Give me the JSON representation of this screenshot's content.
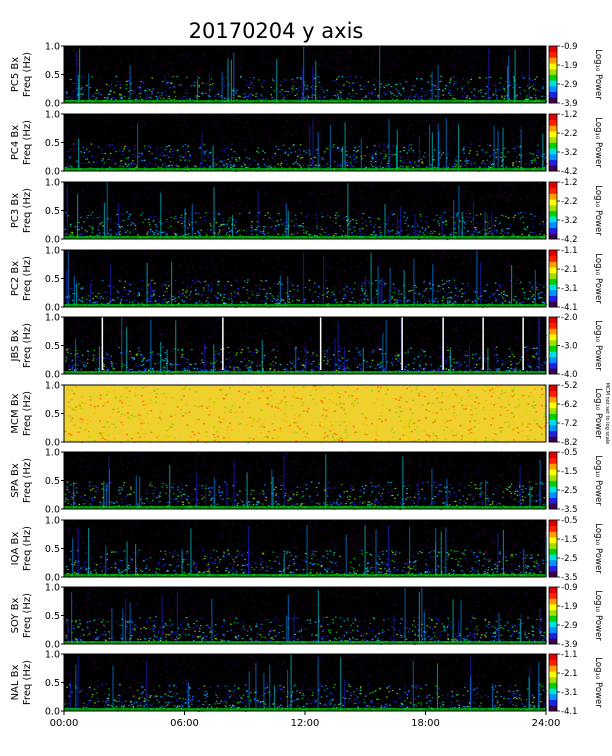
{
  "title": "20170204 y axis",
  "colorbar_label": "Log₁₀ Power",
  "time_ticks": [
    "00:00",
    "06:00",
    "12:00",
    "18:00",
    "24:00"
  ],
  "colormap": [
    "#3a0050",
    "#2020e0",
    "#0090ff",
    "#00e0e0",
    "#00d000",
    "#a0e000",
    "#ffff00",
    "#ffa000",
    "#ff2000",
    "#e00000"
  ],
  "chart_data": {
    "type": "heatmap",
    "x_unit": "UT",
    "xlim": [
      "00:00",
      "24:00"
    ],
    "y_unit": "Freq (Hz)",
    "ylim": [
      0.0,
      1.0
    ],
    "y_ticks": [
      "0.0",
      "0.5",
      "1.0"
    ],
    "panels": [
      {
        "station": "PC5 Bx",
        "ylabel": "Freq (Hz)",
        "cbar_ticks": [
          "-0.9",
          "-1.9",
          "-2.9",
          "-3.9"
        ],
        "cbar_range": [
          -3.9,
          -0.9
        ],
        "cbar_note": ""
      },
      {
        "station": "PC4 Bx",
        "ylabel": "Freq (Hz)",
        "cbar_ticks": [
          "-1.2",
          "-2.2",
          "-3.2",
          "-4.2"
        ],
        "cbar_range": [
          -4.2,
          -1.2
        ],
        "cbar_note": ""
      },
      {
        "station": "PC3 Bx",
        "ylabel": "Freq (Hz)",
        "cbar_ticks": [
          "-1.2",
          "-2.2",
          "-3.2",
          "-4.2"
        ],
        "cbar_range": [
          -4.2,
          -1.2
        ],
        "cbar_note": ""
      },
      {
        "station": "PC2 Bx",
        "ylabel": "Freq (Hz)",
        "cbar_ticks": [
          "-1.1",
          "-2.1",
          "-3.1",
          "-4.1"
        ],
        "cbar_range": [
          -4.1,
          -1.1
        ],
        "cbar_note": ""
      },
      {
        "station": "JBS Bx",
        "ylabel": "Freq (Hz)",
        "cbar_ticks": [
          "-2.0",
          "-3.0",
          "-4.0"
        ],
        "cbar_range": [
          -4.0,
          -2.0
        ],
        "cbar_note": ""
      },
      {
        "station": "MCM Bx",
        "ylabel": "Freq (Hz)",
        "cbar_ticks": [
          "-5.2",
          "-6.2",
          "-7.2",
          "-8.2"
        ],
        "cbar_range": [
          -8.2,
          -5.2
        ],
        "cbar_note": "MCM not set to log scale"
      },
      {
        "station": "SPA Bx",
        "ylabel": "Freq (Hz)",
        "cbar_ticks": [
          "-0.5",
          "-1.5",
          "-2.5",
          "-3.5"
        ],
        "cbar_range": [
          -3.5,
          -0.5
        ],
        "cbar_note": ""
      },
      {
        "station": "IQA Bx",
        "ylabel": "Freq (Hz)",
        "cbar_ticks": [
          "-0.5",
          "-1.5",
          "-2.5",
          "-3.5"
        ],
        "cbar_range": [
          -3.5,
          -0.5
        ],
        "cbar_note": ""
      },
      {
        "station": "SOY Bx",
        "ylabel": "Freq (Hz)",
        "cbar_ticks": [
          "-0.9",
          "-1.9",
          "-2.9",
          "-3.9"
        ],
        "cbar_range": [
          -3.9,
          -0.9
        ],
        "cbar_note": ""
      },
      {
        "station": "NAL Bx",
        "ylabel": "Freq (Hz)",
        "cbar_ticks": [
          "-1.1",
          "-2.1",
          "-3.1",
          "-4.1"
        ],
        "cbar_range": [
          -4.1,
          -1.1
        ],
        "cbar_note": ""
      }
    ]
  }
}
